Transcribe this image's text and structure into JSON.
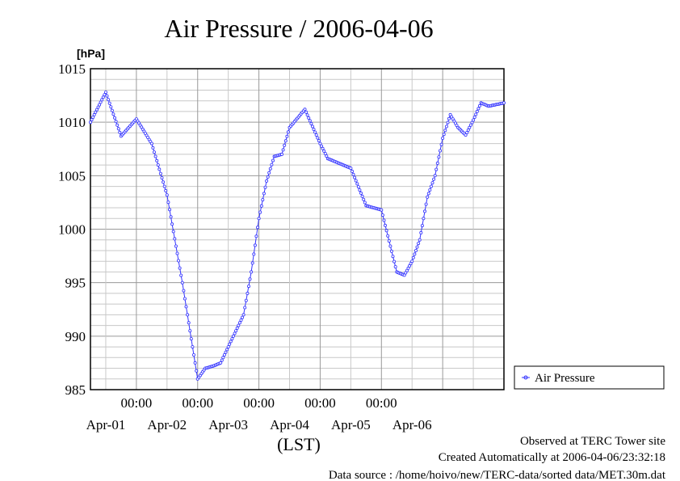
{
  "chart_data": {
    "type": "line",
    "title": "Air Pressure / 2006-04-06",
    "ylabel": "[hPa]",
    "xlabel": "(LST)",
    "ylim": [
      985,
      1015
    ],
    "y_ticks": [
      "1015",
      "1010",
      "1005",
      "1000",
      "995",
      "990",
      "985"
    ],
    "y_minor_step": 1,
    "x_range_days": [
      "2006-03-31 06:00",
      "2006-04-06 24:00"
    ],
    "x_time_ticks": [
      "00:00",
      "00:00",
      "00:00",
      "00:00",
      "00:00"
    ],
    "x_date_labels": [
      "Apr-01",
      "Apr-02",
      "Apr-03",
      "Apr-04",
      "Apr-05",
      "Apr-06"
    ],
    "grid": true,
    "legend": "right",
    "series": [
      {
        "name": "Air Pressure",
        "color": "#3333ff",
        "x": [
          "2006-03-31 06:00",
          "2006-03-31 12:00",
          "2006-03-31 18:00",
          "2006-04-01 00:00",
          "2006-04-01 06:00",
          "2006-04-01 12:00",
          "2006-04-01 18:00",
          "2006-04-02 00:00",
          "2006-04-02 03:00",
          "2006-04-02 06:00",
          "2006-04-02 09:00",
          "2006-04-02 12:00",
          "2006-04-02 18:00",
          "2006-04-02 21:00",
          "2006-04-03 00:00",
          "2006-04-03 03:00",
          "2006-04-03 06:00",
          "2006-04-03 09:00",
          "2006-04-03 12:00",
          "2006-04-03 18:00",
          "2006-04-04 00:00",
          "2006-04-04 03:00",
          "2006-04-04 06:00",
          "2006-04-04 12:00",
          "2006-04-04 18:00",
          "2006-04-05 00:00",
          "2006-04-05 06:00",
          "2006-04-05 09:00",
          "2006-04-05 12:00",
          "2006-04-05 15:00",
          "2006-04-05 18:00",
          "2006-04-05 21:00",
          "2006-04-06 00:00",
          "2006-04-06 03:00",
          "2006-04-06 06:00",
          "2006-04-06 09:00",
          "2006-04-06 12:00",
          "2006-04-06 15:00",
          "2006-04-06 18:00",
          "2006-04-06 24:00"
        ],
        "values": [
          1010,
          1012.8,
          1008.7,
          1010.3,
          1008,
          1003.2,
          995,
          986,
          987,
          987.2,
          987.5,
          989,
          992,
          996,
          1001,
          1004.5,
          1006.8,
          1007,
          1009.5,
          1011.2,
          1008,
          1006.6,
          1006.3,
          1005.7,
          1002.2,
          1001.8,
          996,
          995.7,
          997,
          999,
          1003,
          1005,
          1008.5,
          1010.7,
          1009.5,
          1008.8,
          1010.2,
          1011.8,
          1011.5,
          1011.8
        ]
      }
    ],
    "footer": [
      "Observed at TERC Tower site",
      "Created Automatically at 2006-04-06/23:32:18",
      "Data source : /home/hoivo/new/TERC-data/sorted data/MET.30m.dat"
    ]
  }
}
